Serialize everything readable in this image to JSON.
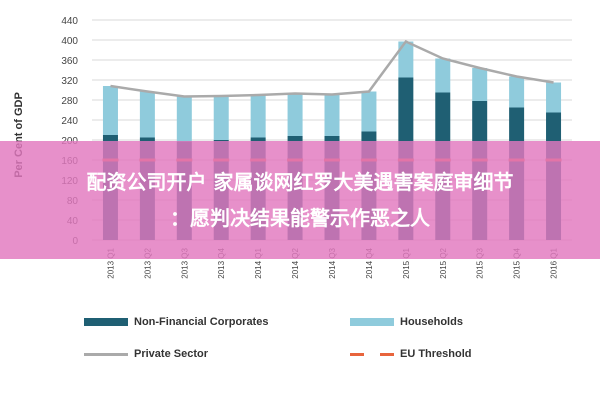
{
  "chart_data": {
    "type": "bar",
    "ylabel": "Per Cent of GDP",
    "ylim": [
      0,
      440
    ],
    "yticks": [
      0,
      40,
      80,
      120,
      160,
      200,
      240,
      280,
      320,
      360,
      400,
      440
    ],
    "categories": [
      "2013 Q1",
      "2013 Q2",
      "2013 Q3",
      "2013 Q4",
      "2014 Q1",
      "2014 Q2",
      "2014 Q3",
      "2014 Q4",
      "2015 Q1",
      "2015 Q2",
      "2015 Q3",
      "2015 Q4",
      "2016 Q1"
    ],
    "series": [
      {
        "name": "Non-Financial Corporates",
        "type": "stacked-bar",
        "color": "#1f5f73",
        "values": [
          210,
          205,
          197,
          200,
          205,
          208,
          208,
          217,
          325,
          295,
          278,
          265,
          255
        ]
      },
      {
        "name": "Households",
        "type": "stacked-bar",
        "color": "#8fcbdc",
        "values": [
          98,
          92,
          90,
          88,
          85,
          85,
          83,
          80,
          72,
          68,
          66,
          62,
          60
        ]
      },
      {
        "name": "Private Sector",
        "type": "line",
        "color": "#aaaaaa",
        "values": [
          308,
          297,
          287,
          288,
          290,
          293,
          291,
          297,
          397,
          363,
          344,
          327,
          315
        ]
      },
      {
        "name": "EU Threshold",
        "type": "dashed-line",
        "color": "#e8643c",
        "values": [
          160,
          160,
          160,
          160,
          160,
          160,
          160,
          160,
          160,
          160,
          160,
          160,
          160
        ]
      }
    ],
    "legend": "bottom",
    "grid": true
  },
  "overlay": {
    "line1": "配资公司开户 家属谈网红罗大美遇害案庭审细节",
    "line2": "：愿判决结果能警示作恶之人"
  }
}
